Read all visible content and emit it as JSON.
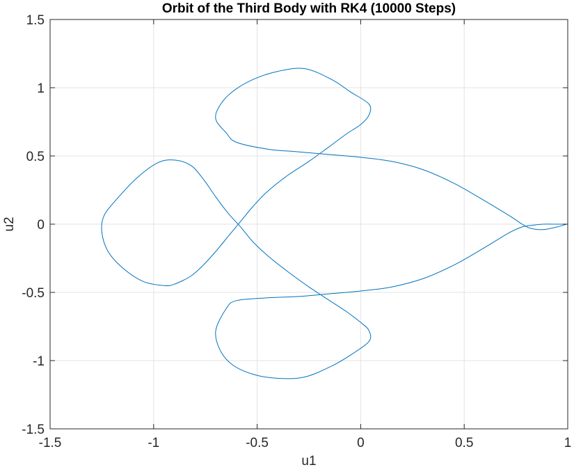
{
  "chart_data": {
    "type": "line",
    "title": "Orbit of the Third Body with RK4 (10000 Steps)",
    "xlabel": "u1",
    "ylabel": "u2",
    "xlim": [
      -1.5,
      1
    ],
    "ylim": [
      -1.5,
      1.5
    ],
    "xticks": [
      -1.5,
      -1,
      -0.5,
      0,
      0.5,
      1
    ],
    "xtick_labels": [
      "-1.5",
      "-1",
      "-0.5",
      "0",
      "0.5",
      "1"
    ],
    "yticks": [
      -1.5,
      -1,
      -0.5,
      0,
      0.5,
      1,
      1.5
    ],
    "ytick_labels": [
      "-1.5",
      "-1",
      "-0.5",
      "0",
      "0.5",
      "1",
      "1.5"
    ],
    "grid": true,
    "legend": "none",
    "colors": {
      "line": "#0072BD",
      "grid": "#e3e3e3",
      "axes": "#262626"
    },
    "series": [
      {
        "x": [
          0.994,
          0.95,
          0.88,
          0.82,
          0.78,
          0.72,
          0.6,
          0.45,
          0.3,
          0.15,
          0.0,
          -0.15,
          -0.3,
          -0.45,
          -0.6,
          -0.65,
          -0.7,
          -0.68,
          -0.62,
          -0.52,
          -0.4,
          -0.27,
          -0.14,
          -0.05,
          0.04,
          0.04,
          0.0,
          -0.07,
          -0.15,
          -0.25,
          -0.35,
          -0.45,
          -0.52,
          -0.58,
          -0.64,
          -0.7,
          -0.76,
          -0.82,
          -0.9,
          -0.98,
          -1.08,
          -1.18,
          -1.24,
          -1.25,
          -1.22,
          -1.15,
          -1.05,
          -0.95,
          -0.9,
          -0.82,
          -0.76,
          -0.7,
          -0.64,
          -0.58,
          -0.52,
          -0.45,
          -0.35,
          -0.25,
          -0.15,
          -0.07,
          0.0,
          0.04,
          0.04,
          -0.05,
          -0.14,
          -0.27,
          -0.4,
          -0.52,
          -0.62,
          -0.68,
          -0.7,
          -0.65,
          -0.6,
          -0.45,
          -0.3,
          -0.15,
          0.0,
          0.15,
          0.3,
          0.45,
          0.6,
          0.72,
          0.78,
          0.82,
          0.88,
          0.95,
          0.994
        ],
        "y": [
          0.0,
          0.0,
          0.0,
          -0.01,
          -0.02,
          -0.06,
          -0.17,
          -0.3,
          -0.4,
          -0.46,
          -0.49,
          -0.51,
          -0.53,
          -0.54,
          -0.56,
          -0.62,
          -0.78,
          -0.92,
          -1.03,
          -1.1,
          -1.13,
          -1.12,
          -1.04,
          -0.96,
          -0.86,
          -0.78,
          -0.72,
          -0.64,
          -0.56,
          -0.46,
          -0.35,
          -0.23,
          -0.13,
          -0.02,
          0.08,
          0.2,
          0.33,
          0.43,
          0.47,
          0.45,
          0.34,
          0.18,
          0.06,
          -0.06,
          -0.2,
          -0.32,
          -0.42,
          -0.45,
          -0.44,
          -0.38,
          -0.3,
          -0.2,
          -0.09,
          0.02,
          0.13,
          0.24,
          0.36,
          0.46,
          0.57,
          0.66,
          0.73,
          0.8,
          0.88,
          0.97,
          1.06,
          1.14,
          1.12,
          1.06,
          0.97,
          0.87,
          0.77,
          0.67,
          0.6,
          0.55,
          0.53,
          0.51,
          0.49,
          0.46,
          0.4,
          0.3,
          0.17,
          0.06,
          0.0,
          -0.03,
          -0.04,
          -0.02,
          0.0
        ]
      }
    ]
  }
}
